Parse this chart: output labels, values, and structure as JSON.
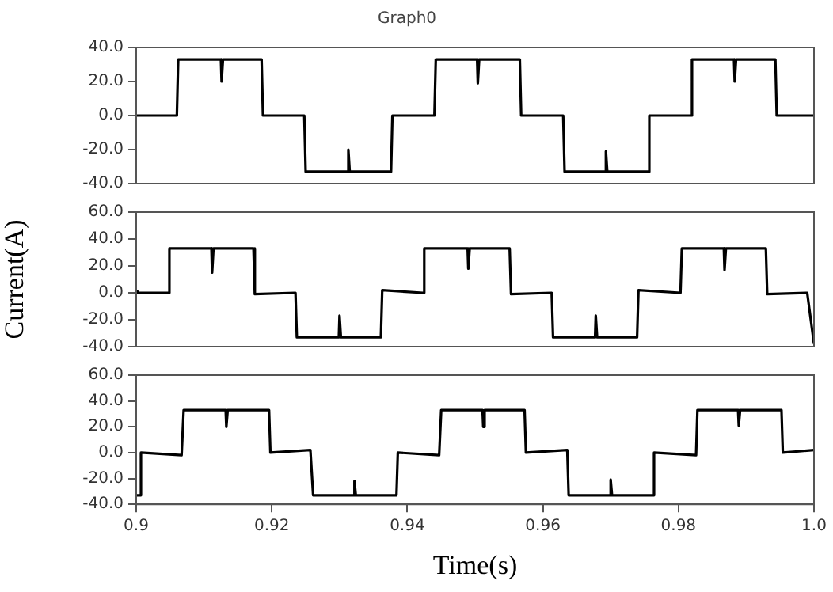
{
  "chart_data": [
    {
      "type": "line",
      "title": "Graph0",
      "xlim": [
        0.9,
        1.0
      ],
      "ylim": [
        -40,
        40
      ],
      "tick_labels": "y",
      "grid": false,
      "legend": false,
      "yticks": [
        {
          "value": -40,
          "label": "-40.0"
        },
        {
          "value": -20,
          "label": "-20.0"
        },
        {
          "value": 0,
          "label": "0.0"
        },
        {
          "value": 20,
          "label": "20.0"
        },
        {
          "value": 40,
          "label": "40.0"
        }
      ],
      "series": [
        {
          "color": "#000000",
          "x": [
            0.9,
            0.906,
            0.9062,
            0.9125,
            0.9126,
            0.9128,
            0.9185,
            0.9187,
            0.9248,
            0.925,
            0.9312,
            0.9313,
            0.9315,
            0.9376,
            0.9378,
            0.944,
            0.9442,
            0.9503,
            0.9504,
            0.9506,
            0.9566,
            0.9568,
            0.963,
            0.9632,
            0.9692,
            0.9693,
            0.9695,
            0.9755,
            0.9757,
            0.9818,
            0.982,
            0.9882,
            0.9883,
            0.9885,
            0.9943,
            0.9945,
            1.0
          ],
          "values": [
            0,
            0,
            33,
            33,
            20,
            33,
            33,
            0,
            0,
            -33,
            -33,
            -20,
            -33,
            -33,
            0,
            0,
            33,
            33,
            19,
            33,
            33,
            0,
            0,
            -33,
            -33,
            -21,
            -33,
            -33,
            0,
            0,
            33,
            33,
            20,
            33,
            33,
            0,
            0
          ]
        }
      ]
    },
    {
      "type": "line",
      "ylabel": "Current(A)",
      "xlim": [
        0.9,
        1.0
      ],
      "ylim": [
        -40,
        60
      ],
      "tick_labels": "y",
      "grid": false,
      "legend": false,
      "yticks": [
        {
          "value": -40,
          "label": "-40.0"
        },
        {
          "value": -20,
          "label": "-20.0"
        },
        {
          "value": 0,
          "label": "0.0"
        },
        {
          "value": 20,
          "label": "20.0"
        },
        {
          "value": 40,
          "label": "40.0"
        },
        {
          "value": 60,
          "label": "60.0"
        }
      ],
      "series": [
        {
          "color": "#000000",
          "x": [
            0.9,
            0.9002,
            0.9047,
            0.9049,
            0.9111,
            0.9112,
            0.9114,
            0.9173,
            0.9175,
            0.9235,
            0.9237,
            0.9299,
            0.93,
            0.9302,
            0.9361,
            0.9363,
            0.9423,
            0.9425,
            0.9489,
            0.949,
            0.9492,
            0.9551,
            0.9553,
            0.9613,
            0.9615,
            0.9677,
            0.9678,
            0.968,
            0.9739,
            0.9741,
            0.9803,
            0.9805,
            0.9867,
            0.9868,
            0.987,
            0.9929,
            0.9931,
            0.999,
            1.0
          ],
          "values": [
            1,
            0,
            0,
            33,
            33,
            15,
            33,
            33,
            -1,
            0,
            -33,
            -33,
            -17,
            -33,
            -33,
            2,
            0,
            33,
            33,
            18,
            33,
            33,
            -1,
            0,
            -33,
            -33,
            -17,
            -33,
            -33,
            2,
            0,
            33,
            33,
            17,
            33,
            33,
            -1,
            0,
            -38
          ]
        }
      ]
    },
    {
      "type": "line",
      "xlabel": "Time(s)",
      "xlim": [
        0.9,
        1.0
      ],
      "ylim": [
        -40,
        60
      ],
      "grid": false,
      "legend": false,
      "yticks": [
        {
          "value": -40,
          "label": "-40.0"
        },
        {
          "value": -20,
          "label": "-20.0"
        },
        {
          "value": 0,
          "label": "0.0"
        },
        {
          "value": 20,
          "label": "20.0"
        },
        {
          "value": 40,
          "label": "40.0"
        },
        {
          "value": 60,
          "label": "60.0"
        }
      ],
      "xticks": [
        0.9,
        0.92,
        0.94,
        0.96,
        0.98,
        {
          "value": 1.0,
          "label": "1.0"
        }
      ],
      "series": [
        {
          "color": "#000000",
          "x": [
            0.9,
            0.9005,
            0.9007,
            0.9067,
            0.907,
            0.9132,
            0.9133,
            0.9135,
            0.9196,
            0.9198,
            0.9257,
            0.9261,
            0.9321,
            0.9322,
            0.9324,
            0.9384,
            0.9386,
            0.9447,
            0.945,
            0.9511,
            0.9512,
            0.9514,
            0.9573,
            0.9575,
            0.9636,
            0.9638,
            0.9699,
            0.97,
            0.9702,
            0.9762,
            0.9764,
            0.9826,
            0.9828,
            0.9888,
            0.9889,
            0.9891,
            0.9952,
            0.9954,
            1.0
          ],
          "values": [
            -33,
            -33,
            0,
            -2,
            33,
            33,
            20,
            33,
            33,
            0,
            2,
            -33,
            -33,
            -22,
            -33,
            -33,
            0,
            -2,
            33,
            33,
            20,
            33,
            33,
            0,
            2,
            -33,
            -33,
            -21,
            -33,
            -33,
            0,
            -2,
            33,
            33,
            21,
            33,
            33,
            0,
            2
          ]
        }
      ]
    }
  ]
}
